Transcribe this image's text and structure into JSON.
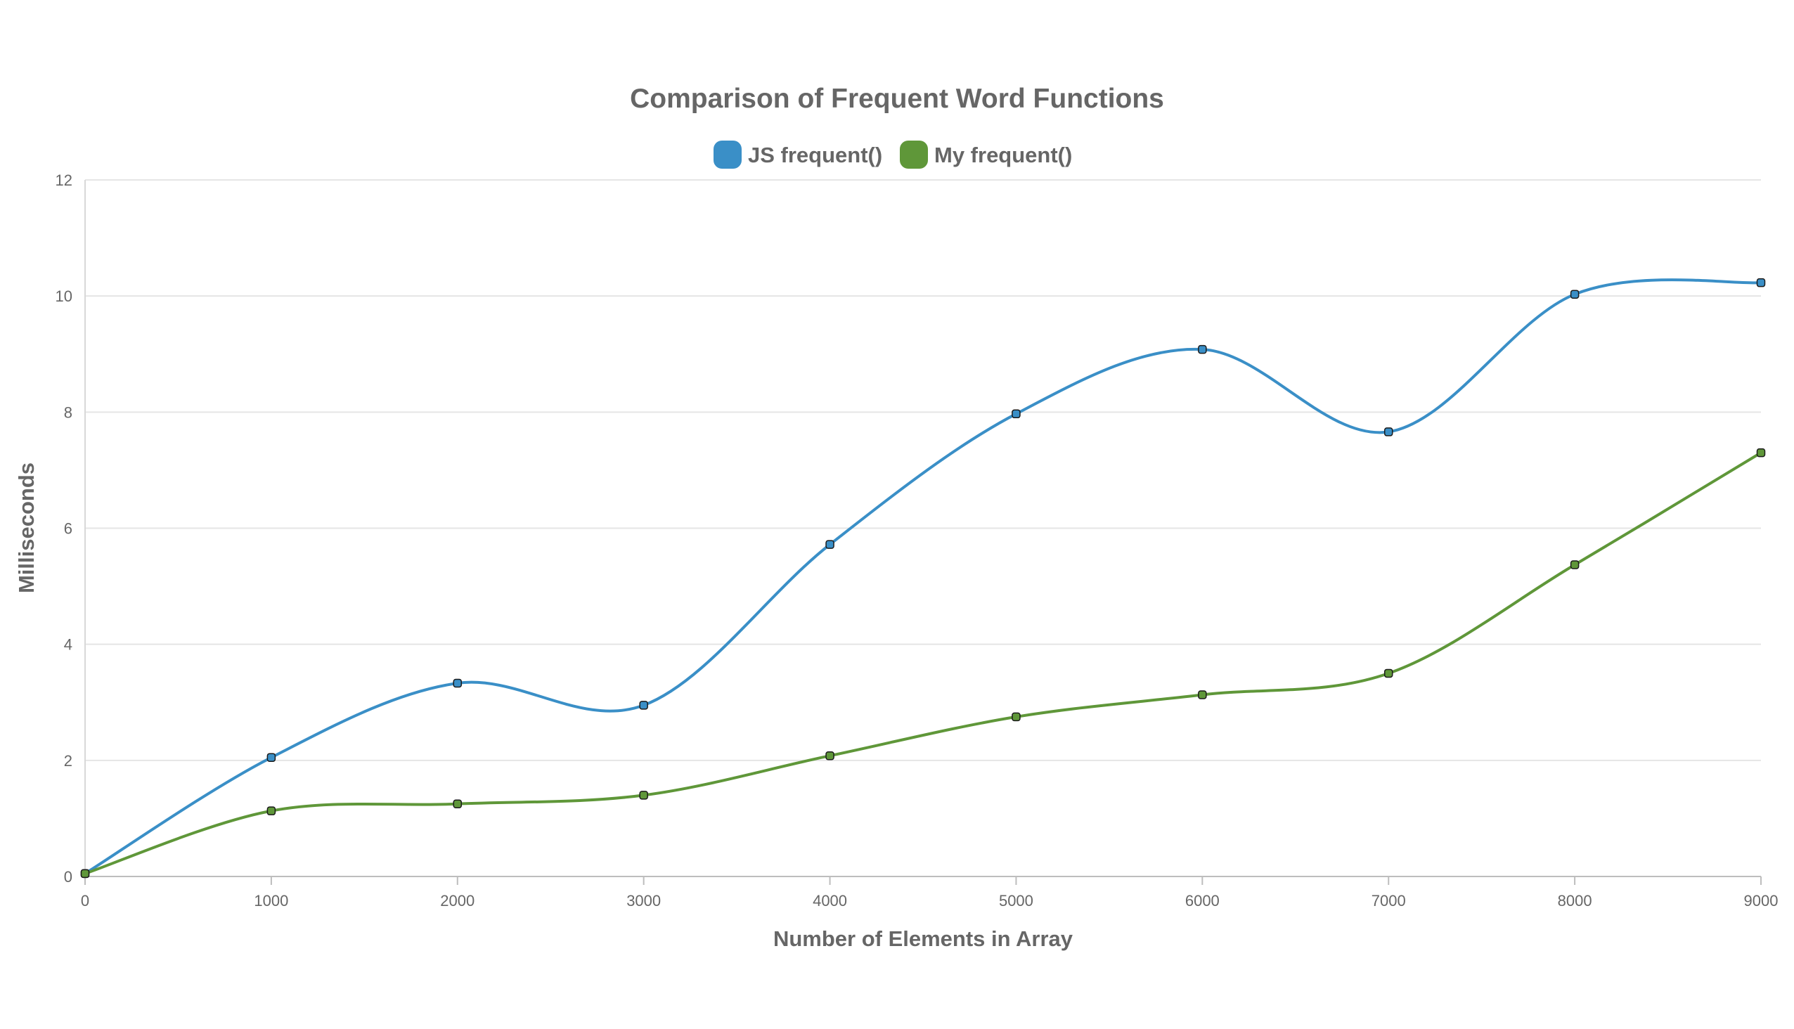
{
  "chart_data": {
    "type": "line",
    "title": "Comparison of Frequent Word Functions",
    "xlabel": "Number of Elements in Array",
    "ylabel": "Milliseconds",
    "x": [
      0,
      1000,
      2000,
      3000,
      4000,
      5000,
      6000,
      7000,
      8000,
      9000
    ],
    "x_ticks": [
      "0",
      "1000",
      "2000",
      "3000",
      "4000",
      "5000",
      "6000",
      "7000",
      "8000",
      "9000"
    ],
    "y_ticks": [
      "0",
      "2",
      "4",
      "6",
      "8",
      "10",
      "12"
    ],
    "xlim": [
      0,
      9000
    ],
    "ylim": [
      0,
      12
    ],
    "grid": true,
    "legend_position": "top",
    "series": [
      {
        "name": "JS frequent()",
        "color": "#3a8fc7",
        "values": [
          0.05,
          2.05,
          3.33,
          2.95,
          5.72,
          7.97,
          9.08,
          7.66,
          10.03,
          10.23
        ]
      },
      {
        "name": "My frequent()",
        "color": "#5f9739",
        "values": [
          0.05,
          1.13,
          1.25,
          1.4,
          2.08,
          2.75,
          3.13,
          3.5,
          5.37,
          7.3
        ]
      }
    ]
  }
}
